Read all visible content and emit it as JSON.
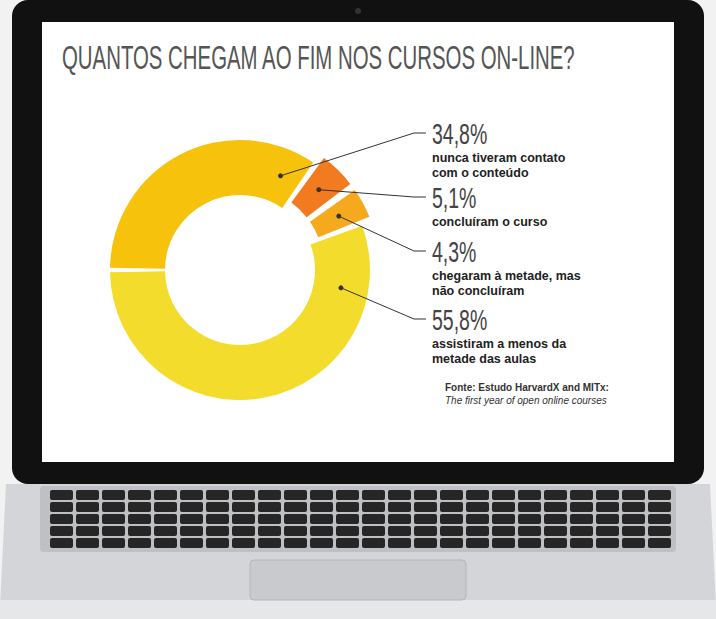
{
  "chart_data": {
    "type": "pie",
    "title": "QUANTOS CHEGAM AO FIM NOS CURSOS ON-LINE?",
    "categories": [
      "nunca tiveram contato com o conteúdo",
      "concluíram o curso",
      "chegaram à metade, mas não concluíram",
      "assistiram a menos da metade das aulas"
    ],
    "values": [
      34.8,
      5.1,
      4.3,
      55.8
    ],
    "value_labels": [
      "34,8%",
      "5,1%",
      "4,3%",
      "55,8%"
    ],
    "colors": [
      "#f6c20c",
      "#f27a1f",
      "#f5a91d",
      "#f3dc2c"
    ],
    "data_labels": true,
    "source": "Fonte: Estudo HarvardX and MITx: The first year of open online courses"
  }
}
